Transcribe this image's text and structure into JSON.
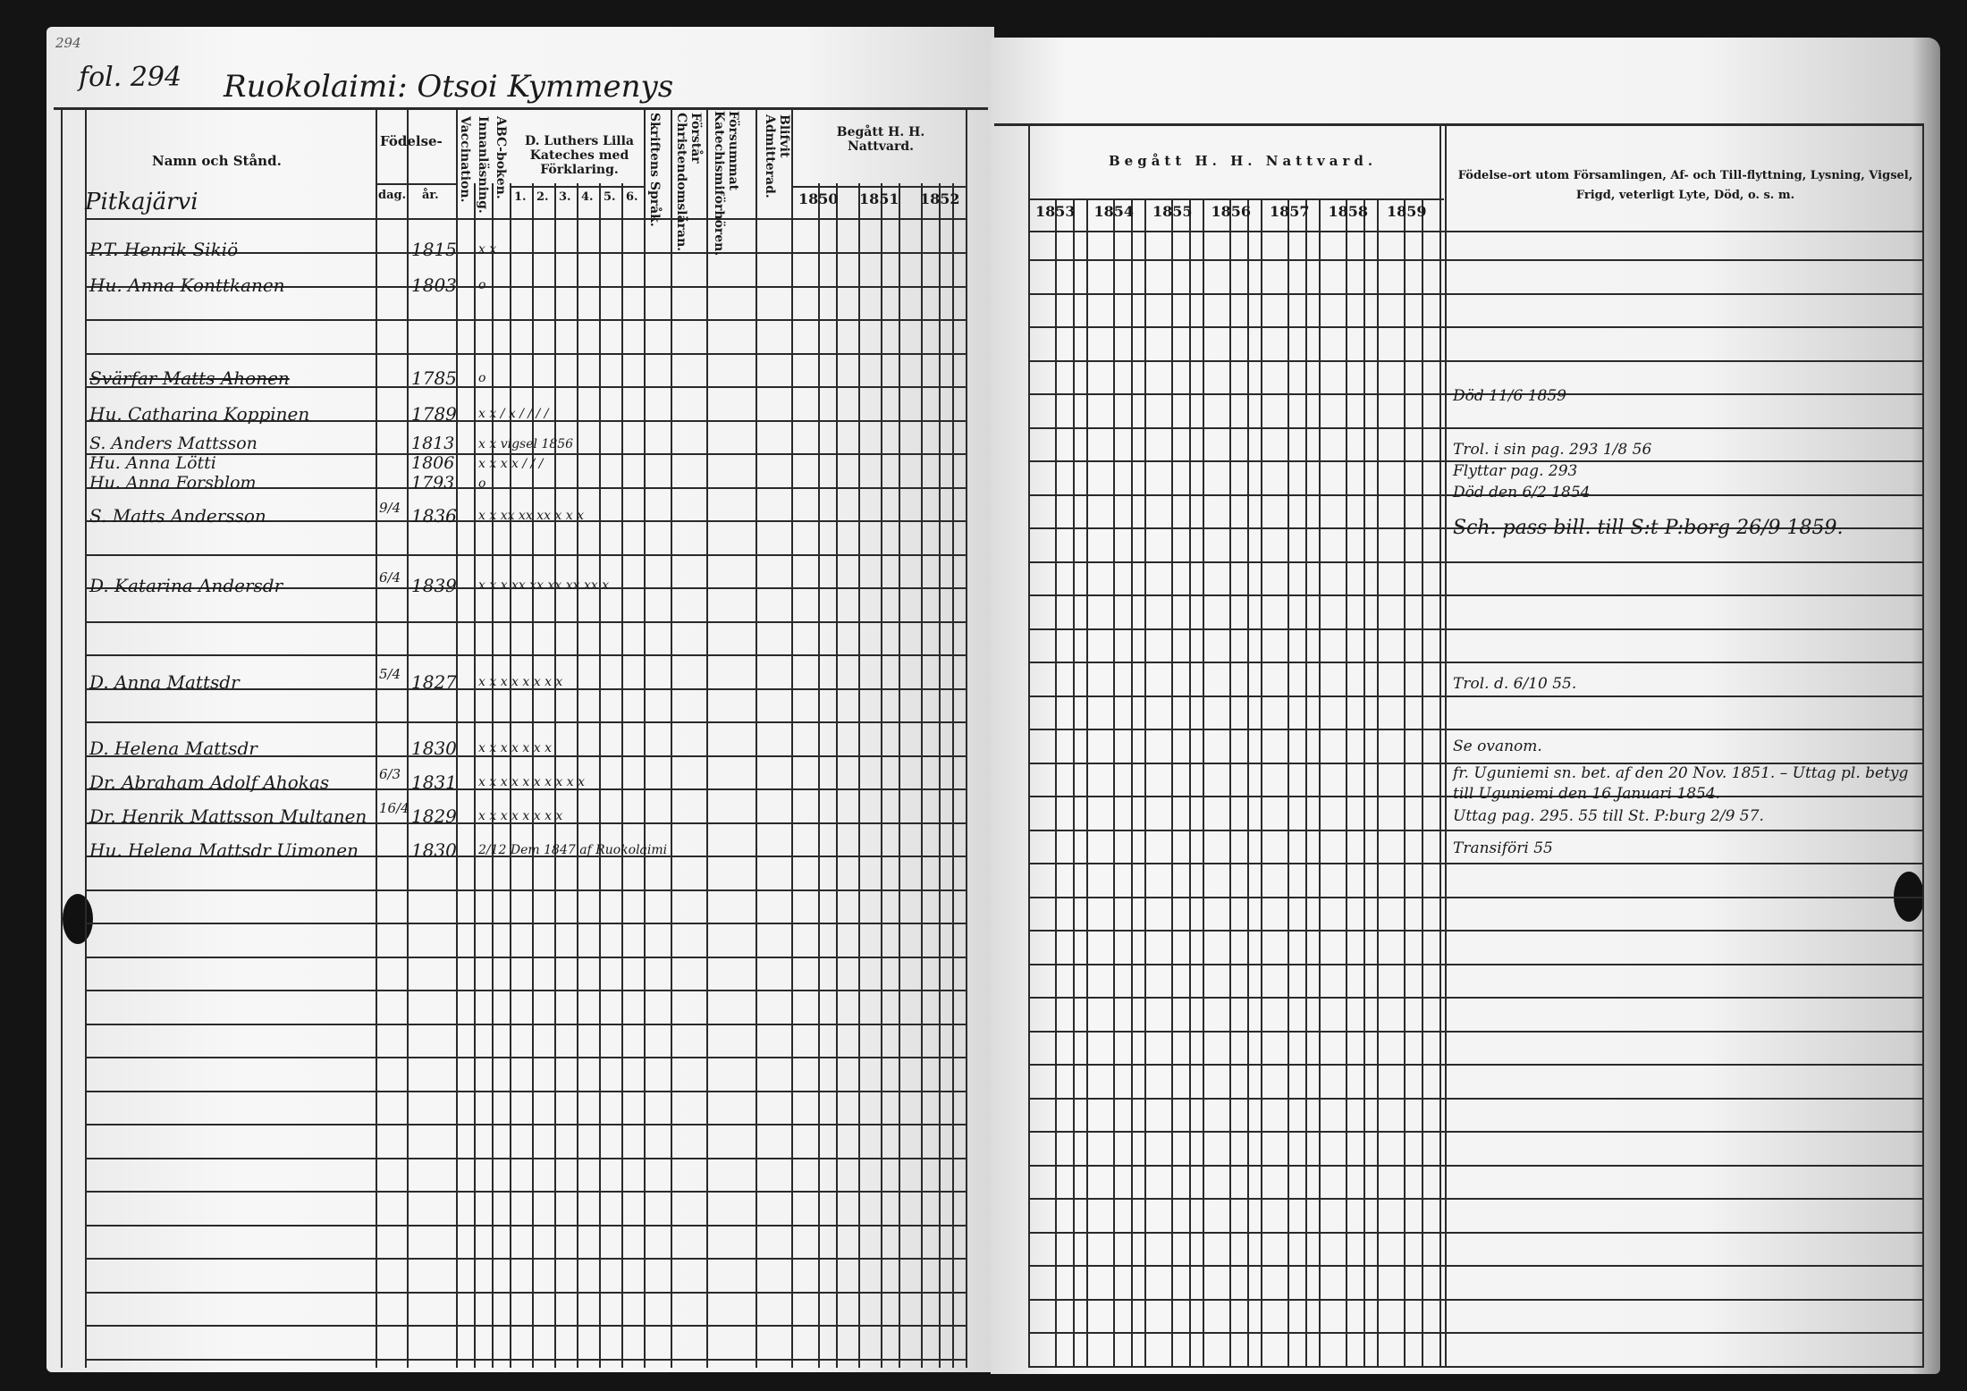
{
  "folio": {
    "stamp": "294",
    "label": "fol. 294",
    "village": "Ruokolaimi: Otsoi Kymmenys"
  },
  "left_header": {
    "name_col": "Namn och Stånd.",
    "birth": "Födelse-",
    "birth_day": "dag.",
    "birth_year": "år.",
    "vaccination": "Vaccination.",
    "reading": "Innanläsning.",
    "abc": "ABC-boken.",
    "luther": "D. Luthers Lilla Kateches med Förklaring.",
    "luther_parts": [
      "1.",
      "2.",
      "3.",
      "4.",
      "5.",
      "6."
    ],
    "scripture": "Skriftens Språk.",
    "understands": "Förstår Christendomsläran.",
    "missed": "Försummat Katechismiförhören.",
    "admitted": "Blifvit Admitterad.",
    "communion": "Begått H. H. Nattvard.",
    "years": [
      "1850",
      "1851",
      "1852"
    ]
  },
  "right_header": {
    "communion": "Begått H. H. Nattvard.",
    "years": [
      "1853",
      "1854",
      "1855",
      "1856",
      "1857",
      "1858",
      "1859"
    ],
    "notes": "Födelse-ort utom Församlingen, Af- och Till-flyttning, Lysning, Vigsel, Frigd, veterligt Lyte, Död, o. s. m."
  },
  "place": "Pitkajärvi",
  "entries": [
    {
      "name": "P.T. Henrik Sikiö",
      "day": "",
      "year": "1815",
      "marks": "x x"
    },
    {
      "name": "Hu. Anna Konttkanen",
      "day": "",
      "year": "1803",
      "marks": "o"
    },
    {
      "name": "Svärfar Matts Ahonen",
      "day": "",
      "year": "1785",
      "marks": "o",
      "struck": true
    },
    {
      "name": "Hu. Catharina Koppinen",
      "day": "",
      "year": "1789",
      "marks": "x x / x / / / /"
    },
    {
      "name": "S. Anders Mattsson",
      "day": "",
      "year": "1813",
      "marks": "x x vigsel 1856"
    },
    {
      "name": "Hu. Anna Lötti",
      "day": "",
      "year": "1806",
      "marks": "x x x x / / /"
    },
    {
      "name": "Hu. Anna Forsblom",
      "day": "",
      "year": "1793",
      "marks": "o"
    },
    {
      "name": "S. Matts Andersson",
      "day": "9/4",
      "year": "1836",
      "marks": "x x xx xx xx x x x"
    },
    {
      "name": "D. Katarina Andersdr",
      "day": "6/4",
      "year": "1839",
      "marks": "x x x xx xx xx xx xx x"
    },
    {
      "name": "D. Anna Mattsdr",
      "day": "5/4",
      "year": "1827",
      "marks": "x x x x x x x x"
    },
    {
      "name": "D. Helena Mattsdr",
      "day": "",
      "year": "1830",
      "marks": "x x x x x x x"
    },
    {
      "name": "Dr. Abraham Adolf Ahokas",
      "day": "6/3",
      "year": "1831",
      "marks": "x x x x x x x x x x"
    },
    {
      "name": "Dr. Henrik Mattsson Multanen",
      "day": "16/4",
      "year": "1829",
      "marks": "x x x x x x x x"
    },
    {
      "name": "Hu. Helena Mattsdr Uimonen",
      "day": "",
      "year": "1830",
      "marks": "2/12 Dem 1847 af Ruokolaimi"
    }
  ],
  "notes": [
    "Död 11/6 1859",
    "Trol. i sin pag. 293 1/8 56",
    "Flyttar pag. 293",
    "Död den 6/2 1854",
    "Sch. pass bill. till S:t P:borg 26/9 1859.",
    "Trol. d. 6/10 55.",
    "Se ovanom.",
    "fr. Uguniemi sn. bet. af den 20 Nov. 1851. – Uttag pl. betyg",
    "till Uguniemi den 16 Januari 1854.",
    "Uttag pag. 295. 55   till St. P:burg 2/9 57.",
    "Transiföri 55"
  ]
}
